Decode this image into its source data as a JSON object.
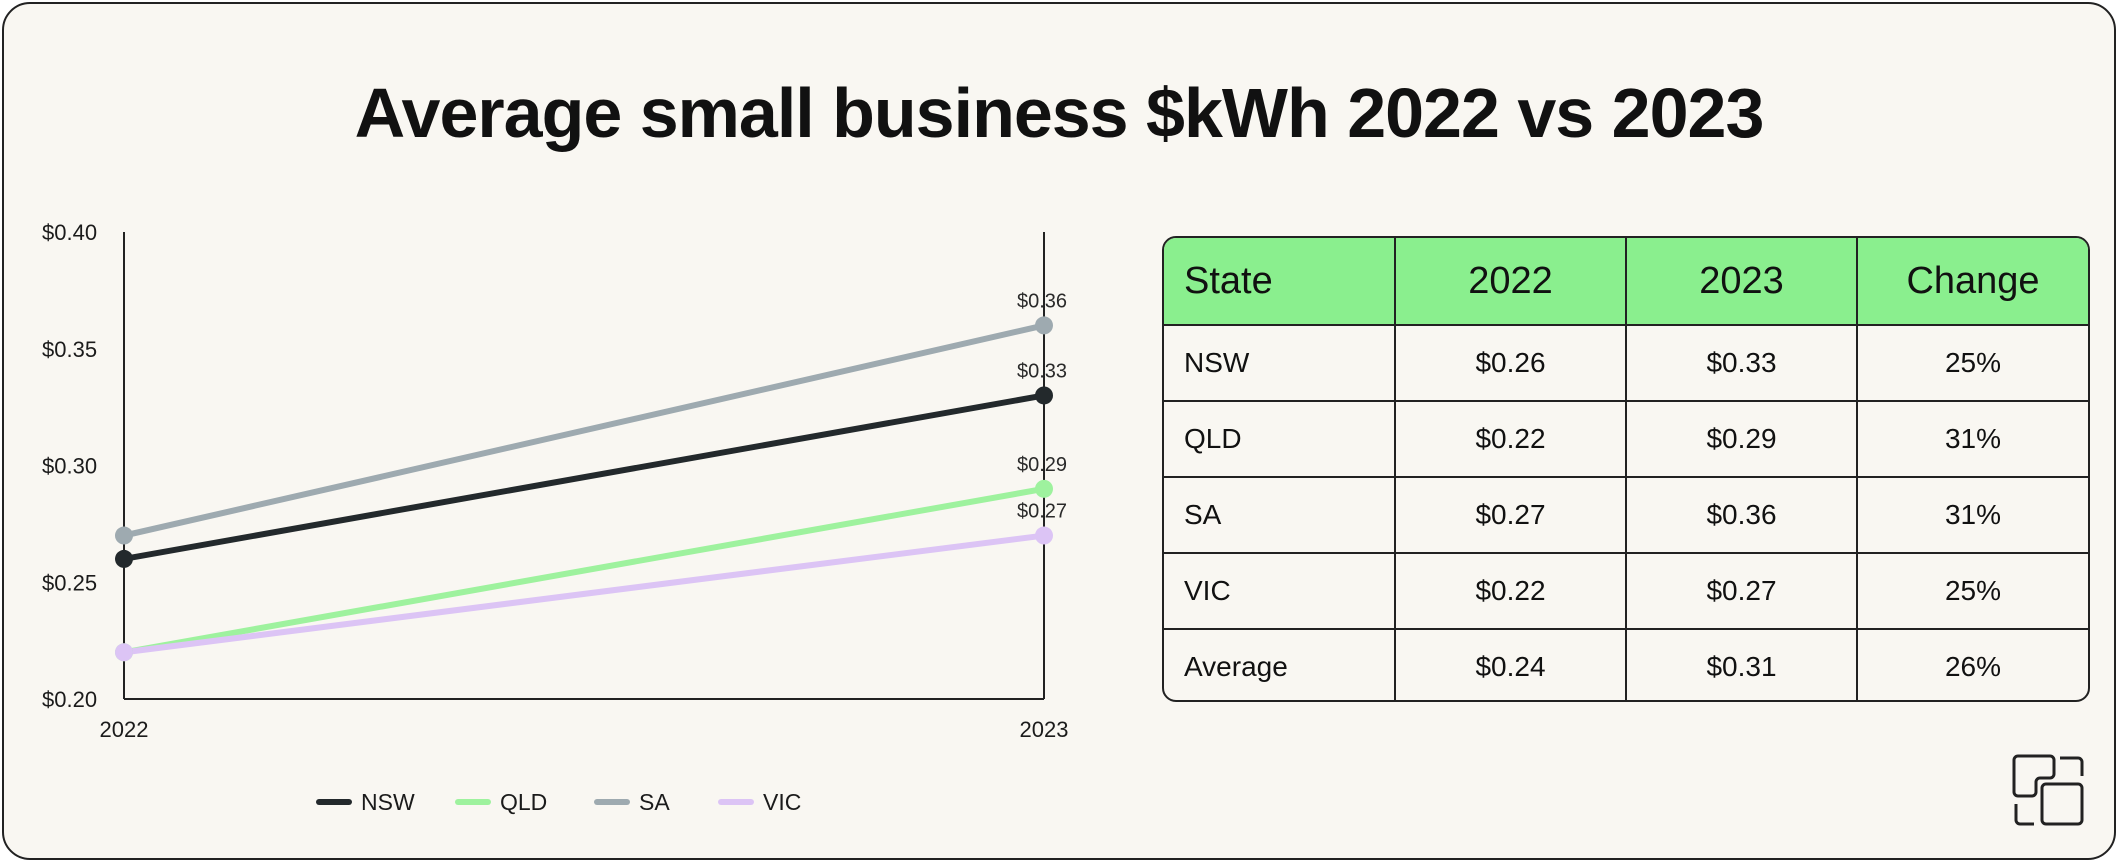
{
  "title": "Average small business $kWh 2022 vs 2023",
  "chart_data": {
    "type": "line",
    "title": "Average small business $kWh 2022 vs 2023",
    "x": [
      "2022",
      "2023"
    ],
    "yticks": [
      "$0.40",
      "$0.35",
      "$0.30",
      "$0.25",
      "$0.20"
    ],
    "ylim": [
      0.2,
      0.4
    ],
    "grid": false,
    "legend_position": "bottom",
    "series": [
      {
        "name": "NSW",
        "color": "#23292c",
        "values": [
          0.26,
          0.33
        ],
        "labels": [
          "",
          "$0.33"
        ]
      },
      {
        "name": "QLD",
        "color": "#9ef29e",
        "values": [
          0.22,
          0.29
        ],
        "labels": [
          "",
          "$0.29"
        ]
      },
      {
        "name": "SA",
        "color": "#9eaab0",
        "values": [
          0.27,
          0.36
        ],
        "labels": [
          "",
          "$0.36"
        ]
      },
      {
        "name": "VIC",
        "color": "#dcc4f5",
        "values": [
          0.22,
          0.27
        ],
        "labels": [
          "",
          "$0.27"
        ]
      }
    ]
  },
  "table": {
    "headers": [
      "State",
      "2022",
      "2023",
      "Change"
    ],
    "rows": [
      [
        "NSW",
        "$0.26",
        "$0.33",
        "25%"
      ],
      [
        "QLD",
        "$0.22",
        "$0.29",
        "31%"
      ],
      [
        "SA",
        "$0.27",
        "$0.36",
        "31%"
      ],
      [
        "VIC",
        "$0.22",
        "$0.27",
        "25%"
      ],
      [
        "Average",
        "$0.24",
        "$0.31",
        "26%"
      ]
    ]
  },
  "colors": {
    "background": "#f9f7f2",
    "table_header": "#8aef8e",
    "border": "#222222"
  },
  "logo": {
    "icon": "brand-logo-icon"
  }
}
